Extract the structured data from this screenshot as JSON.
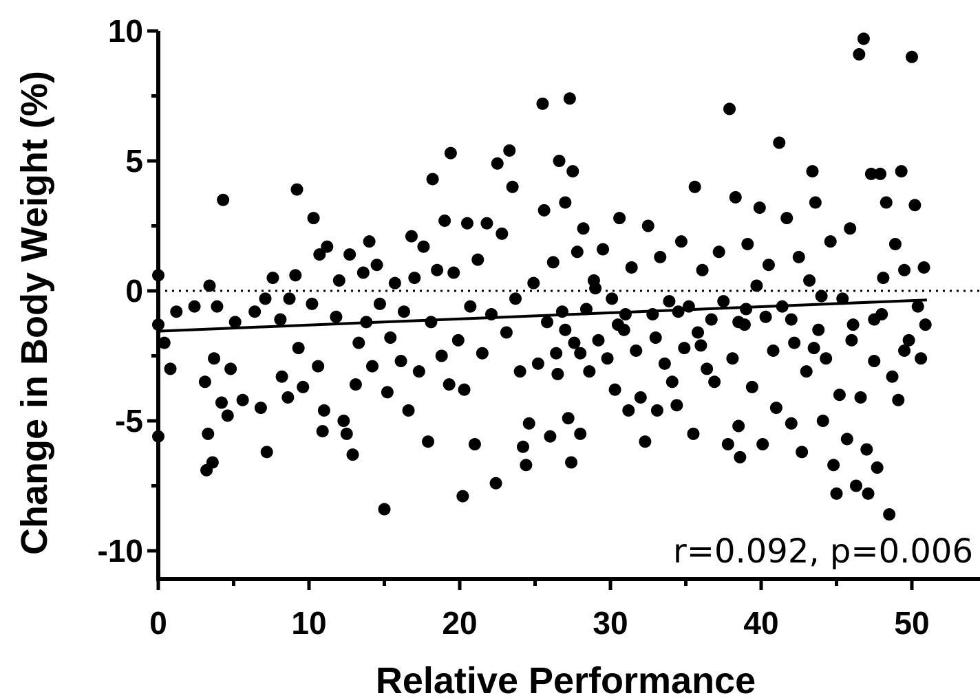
{
  "chart_data": {
    "type": "scatter",
    "title": "",
    "xlabel": "Relative Performance",
    "ylabel": "Change in Body Weight (%)",
    "xlim": [
      0,
      54
    ],
    "ylim": [
      -11,
      10
    ],
    "x_ticks": [
      0,
      10,
      20,
      30,
      40,
      50
    ],
    "y_ticks": [
      -10,
      -5,
      0,
      5,
      10
    ],
    "x_tick_labels": [
      "0",
      "10",
      "20",
      "30",
      "40",
      "50"
    ],
    "y_tick_labels": [
      "-10",
      "-5",
      "0",
      "5",
      "10"
    ],
    "reference_line": {
      "y": 0,
      "style": "dotted"
    },
    "regression_line": {
      "x": [
        0,
        51
      ],
      "y": [
        -1.55,
        -0.35
      ]
    },
    "annotation": "r=0.092, p=0.006",
    "grid": false,
    "legend": "none",
    "marker_color": "#000000",
    "points": [
      [
        0,
        0.6
      ],
      [
        0,
        -1.3
      ],
      [
        0,
        -5.6
      ],
      [
        0.4,
        -2.0
      ],
      [
        0.8,
        -3.0
      ],
      [
        1.2,
        -0.8
      ],
      [
        2.4,
        -0.6
      ],
      [
        3.1,
        -3.5
      ],
      [
        3.2,
        -6.9
      ],
      [
        3.3,
        -5.5
      ],
      [
        3.4,
        0.2
      ],
      [
        3.6,
        -6.6
      ],
      [
        3.7,
        -2.6
      ],
      [
        3.9,
        -0.6
      ],
      [
        4.2,
        -4.3
      ],
      [
        4.3,
        3.5
      ],
      [
        4.6,
        -4.8
      ],
      [
        4.8,
        -3.0
      ],
      [
        5.1,
        -1.2
      ],
      [
        5.6,
        -4.2
      ],
      [
        6.4,
        -0.8
      ],
      [
        6.8,
        -4.5
      ],
      [
        7.1,
        -0.3
      ],
      [
        7.2,
        -6.2
      ],
      [
        7.6,
        0.5
      ],
      [
        8.1,
        -1.1
      ],
      [
        8.2,
        -3.3
      ],
      [
        8.6,
        -4.1
      ],
      [
        8.7,
        -0.3
      ],
      [
        9.1,
        0.6
      ],
      [
        9.2,
        3.9
      ],
      [
        9.3,
        -2.2
      ],
      [
        9.6,
        -3.7
      ],
      [
        10.2,
        -0.5
      ],
      [
        10.3,
        2.8
      ],
      [
        10.6,
        -2.9
      ],
      [
        10.7,
        1.4
      ],
      [
        11.0,
        -4.6
      ],
      [
        11.2,
        1.7
      ],
      [
        10.9,
        -5.4
      ],
      [
        11.8,
        -1.0
      ],
      [
        12.0,
        0.4
      ],
      [
        12.3,
        -5.0
      ],
      [
        12.5,
        -5.5
      ],
      [
        12.7,
        1.4
      ],
      [
        12.9,
        -6.3
      ],
      [
        13.1,
        -3.6
      ],
      [
        13.3,
        -2.0
      ],
      [
        13.6,
        0.7
      ],
      [
        13.8,
        -1.2
      ],
      [
        14.0,
        1.9
      ],
      [
        14.2,
        -2.9
      ],
      [
        14.5,
        1.0
      ],
      [
        14.7,
        -0.5
      ],
      [
        15.0,
        -8.4
      ],
      [
        15.2,
        -3.9
      ],
      [
        15.4,
        -1.8
      ],
      [
        15.7,
        0.3
      ],
      [
        16.1,
        -2.7
      ],
      [
        16.3,
        -0.8
      ],
      [
        16.6,
        -4.6
      ],
      [
        16.8,
        2.1
      ],
      [
        17.0,
        0.5
      ],
      [
        17.3,
        -3.1
      ],
      [
        17.6,
        1.7
      ],
      [
        17.9,
        -5.8
      ],
      [
        18.1,
        -1.2
      ],
      [
        18.2,
        4.3
      ],
      [
        18.5,
        0.8
      ],
      [
        18.8,
        -2.5
      ],
      [
        19.0,
        2.7
      ],
      [
        19.3,
        -3.6
      ],
      [
        19.4,
        5.3
      ],
      [
        19.6,
        0.7
      ],
      [
        19.9,
        -1.9
      ],
      [
        20.2,
        -7.9
      ],
      [
        20.3,
        -3.8
      ],
      [
        20.5,
        2.6
      ],
      [
        20.7,
        -0.6
      ],
      [
        21.0,
        -5.9
      ],
      [
        21.2,
        1.2
      ],
      [
        21.5,
        -2.4
      ],
      [
        21.8,
        2.6
      ],
      [
        22.1,
        -0.9
      ],
      [
        22.4,
        -7.4
      ],
      [
        22.5,
        4.9
      ],
      [
        22.8,
        2.2
      ],
      [
        23.1,
        -1.6
      ],
      [
        23.3,
        5.4
      ],
      [
        23.5,
        4.0
      ],
      [
        23.7,
        -0.3
      ],
      [
        24.0,
        -3.1
      ],
      [
        24.2,
        -6.0
      ],
      [
        24.4,
        -6.7
      ],
      [
        24.6,
        -5.1
      ],
      [
        24.9,
        0.3
      ],
      [
        25.2,
        -2.8
      ],
      [
        25.5,
        7.2
      ],
      [
        25.6,
        3.1
      ],
      [
        25.8,
        -1.2
      ],
      [
        26.0,
        -5.6
      ],
      [
        26.2,
        1.1
      ],
      [
        26.4,
        -2.4
      ],
      [
        26.6,
        5.0
      ],
      [
        26.8,
        -0.8
      ],
      [
        27.0,
        3.4
      ],
      [
        27.2,
        -4.9
      ],
      [
        27.3,
        7.4
      ],
      [
        27.4,
        -6.6
      ],
      [
        27.5,
        4.6
      ],
      [
        27.6,
        -2.0
      ],
      [
        27.8,
        1.5
      ],
      [
        28.0,
        -5.5
      ],
      [
        28.2,
        2.4
      ],
      [
        28.4,
        -0.7
      ],
      [
        28.6,
        -3.1
      ],
      [
        28.9,
        0.4
      ],
      [
        29.2,
        -1.9
      ],
      [
        29.5,
        1.6
      ],
      [
        29.8,
        -2.6
      ],
      [
        30.1,
        -0.3
      ],
      [
        30.3,
        -3.8
      ],
      [
        30.6,
        2.8
      ],
      [
        30.9,
        -1.5
      ],
      [
        31.2,
        -4.6
      ],
      [
        31.4,
        0.9
      ],
      [
        31.7,
        -2.3
      ],
      [
        32.0,
        -4.1
      ],
      [
        32.3,
        -5.8
      ],
      [
        32.5,
        2.5
      ],
      [
        32.8,
        -0.9
      ],
      [
        33.1,
        -4.6
      ],
      [
        33.3,
        1.3
      ],
      [
        33.6,
        -2.8
      ],
      [
        33.9,
        -0.4
      ],
      [
        34.1,
        -3.5
      ],
      [
        34.4,
        -4.4
      ],
      [
        34.7,
        1.9
      ],
      [
        34.9,
        -2.2
      ],
      [
        35.2,
        -0.6
      ],
      [
        35.5,
        -5.5
      ],
      [
        35.6,
        4.0
      ],
      [
        35.8,
        -1.6
      ],
      [
        36.1,
        0.8
      ],
      [
        36.4,
        -3.0
      ],
      [
        36.7,
        -1.1
      ],
      [
        36.9,
        -3.5
      ],
      [
        37.2,
        1.5
      ],
      [
        37.5,
        -0.4
      ],
      [
        37.8,
        -5.9
      ],
      [
        37.9,
        7.0
      ],
      [
        38.1,
        -2.6
      ],
      [
        38.3,
        3.6
      ],
      [
        38.5,
        -5.2
      ],
      [
        38.6,
        -6.4
      ],
      [
        38.9,
        -1.3
      ],
      [
        39.1,
        1.8
      ],
      [
        39.4,
        -3.7
      ],
      [
        39.7,
        0.2
      ],
      [
        39.9,
        3.2
      ],
      [
        40.1,
        -5.9
      ],
      [
        40.3,
        -1.0
      ],
      [
        40.5,
        1.0
      ],
      [
        40.8,
        -2.3
      ],
      [
        41.0,
        -4.5
      ],
      [
        41.2,
        5.7
      ],
      [
        41.4,
        -0.6
      ],
      [
        41.7,
        2.8
      ],
      [
        42.0,
        -5.1
      ],
      [
        42.2,
        -2.0
      ],
      [
        42.5,
        1.3
      ],
      [
        42.7,
        -6.2
      ],
      [
        43.0,
        -3.1
      ],
      [
        43.2,
        0.4
      ],
      [
        43.4,
        4.6
      ],
      [
        43.6,
        3.4
      ],
      [
        43.8,
        -1.5
      ],
      [
        44.1,
        -5.0
      ],
      [
        44.3,
        -2.6
      ],
      [
        44.6,
        1.9
      ],
      [
        44.8,
        -6.7
      ],
      [
        45.0,
        -7.8
      ],
      [
        45.2,
        -4.0
      ],
      [
        45.4,
        -0.3
      ],
      [
        45.7,
        -5.7
      ],
      [
        45.9,
        2.4
      ],
      [
        46.1,
        -1.3
      ],
      [
        46.3,
        -7.5
      ],
      [
        46.5,
        9.1
      ],
      [
        46.6,
        -4.1
      ],
      [
        46.8,
        9.7
      ],
      [
        47.0,
        -6.1
      ],
      [
        47.1,
        -7.8
      ],
      [
        47.3,
        4.5
      ],
      [
        47.5,
        -2.7
      ],
      [
        47.7,
        -6.8
      ],
      [
        47.9,
        4.5
      ],
      [
        48.1,
        0.5
      ],
      [
        48.3,
        3.4
      ],
      [
        48.5,
        -8.6
      ],
      [
        48.7,
        -3.3
      ],
      [
        48.9,
        1.8
      ],
      [
        49.1,
        -4.2
      ],
      [
        49.3,
        4.6
      ],
      [
        49.5,
        0.8
      ],
      [
        49.8,
        -1.9
      ],
      [
        50.0,
        9.0
      ],
      [
        50.2,
        3.3
      ],
      [
        50.4,
        -0.6
      ],
      [
        50.6,
        -2.6
      ],
      [
        50.8,
        0.9
      ],
      [
        50.9,
        -1.3
      ],
      [
        27.0,
        -1.5
      ],
      [
        28.0,
        -2.4
      ],
      [
        29.0,
        0.1
      ],
      [
        31.0,
        -0.9
      ],
      [
        33.0,
        -1.8
      ],
      [
        36.0,
        -2.1
      ],
      [
        39.0,
        -0.7
      ],
      [
        42.0,
        -1.1
      ],
      [
        44.0,
        -0.2
      ],
      [
        46.0,
        -1.9
      ],
      [
        48.0,
        -0.9
      ],
      [
        26.5,
        -3.2
      ],
      [
        30.5,
        -1.3
      ],
      [
        34.5,
        -0.8
      ],
      [
        38.5,
        -1.2
      ],
      [
        43.5,
        -2.2
      ],
      [
        47.5,
        -1.1
      ],
      [
        49.5,
        -2.3
      ]
    ]
  }
}
